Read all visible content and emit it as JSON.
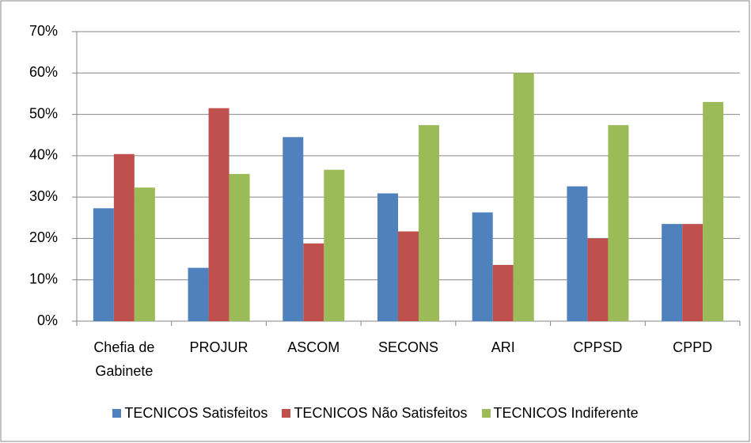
{
  "chart_data": {
    "type": "bar",
    "categories": [
      "Chefia de Gabinete",
      "PROJUR",
      "ASCOM",
      "SECONS",
      "ARI",
      "CPPSD",
      "CPPD"
    ],
    "series": [
      {
        "name": "TECNICOS Satisfeitos",
        "color": "#4f81bd",
        "values": [
          27.3,
          12.9,
          44.5,
          30.9,
          26.3,
          32.6,
          23.5
        ]
      },
      {
        "name": "TECNICOS Não Satisfeitos",
        "color": "#c0504d",
        "values": [
          40.4,
          51.5,
          18.8,
          21.7,
          13.6,
          20.0,
          23.5
        ]
      },
      {
        "name": "TECNICOS Indiferente",
        "color": "#9bbb59",
        "values": [
          32.3,
          35.6,
          36.6,
          47.4,
          60.0,
          47.4,
          53.0
        ]
      }
    ],
    "ylim": [
      0,
      70
    ],
    "yticks": [
      {
        "value": 0,
        "label": "0%"
      },
      {
        "value": 10,
        "label": "10%"
      },
      {
        "value": 20,
        "label": "20%"
      },
      {
        "value": 30,
        "label": "30%"
      },
      {
        "value": 40,
        "label": "40%"
      },
      {
        "value": 50,
        "label": "50%"
      },
      {
        "value": 60,
        "label": "60%"
      },
      {
        "value": 70,
        "label": "70%"
      }
    ],
    "grid": true,
    "legend": "bottom"
  }
}
